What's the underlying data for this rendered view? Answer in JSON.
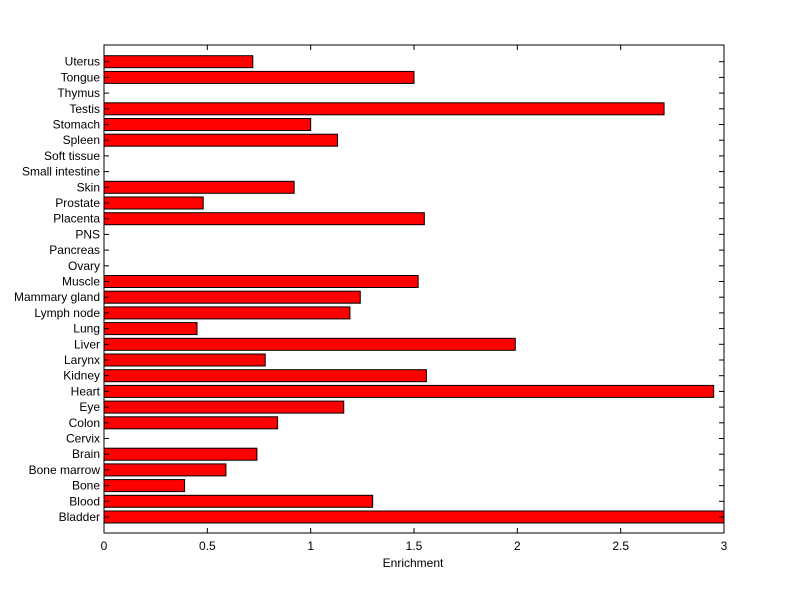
{
  "chart_data": {
    "type": "bar",
    "orientation": "horizontal",
    "categories": [
      "Bladder",
      "Blood",
      "Bone",
      "Bone marrow",
      "Brain",
      "Cervix",
      "Colon",
      "Eye",
      "Heart",
      "Kidney",
      "Larynx",
      "Liver",
      "Lung",
      "Lymph node",
      "Mammary gland",
      "Muscle",
      "Ovary",
      "Pancreas",
      "PNS",
      "Placenta",
      "Prostate",
      "Skin",
      "Small intestine",
      "Soft tissue",
      "Spleen",
      "Stomach",
      "Testis",
      "Thymus",
      "Tongue",
      "Uterus"
    ],
    "values": [
      3.0,
      1.3,
      0.39,
      0.59,
      0.74,
      0,
      0.84,
      1.16,
      2.95,
      1.56,
      0.78,
      1.99,
      0.45,
      1.19,
      1.24,
      1.52,
      0,
      0,
      0,
      1.55,
      0.48,
      0.92,
      0,
      0,
      1.13,
      1.0,
      2.71,
      0,
      1.5,
      0.72
    ],
    "title": "",
    "xlabel": "Enrichment",
    "ylabel": "",
    "xlim": [
      0,
      3
    ],
    "xticks": [
      "0",
      "0.5",
      "1",
      "1.5",
      "2",
      "2.5",
      "3"
    ],
    "bar_color": "#ff0000",
    "grid": false,
    "legend": "none"
  }
}
